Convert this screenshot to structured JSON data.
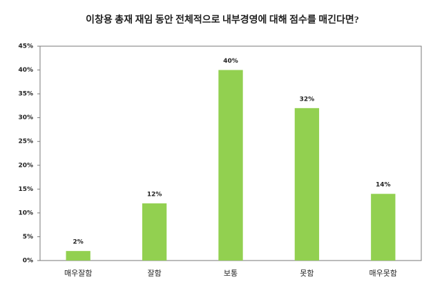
{
  "chart_data": {
    "type": "bar",
    "title": "이창용 총재 재임 동안 전체적으로 내부경영에 대해 점수를 매긴다면?",
    "categories": [
      "매우잘함",
      "잘함",
      "보통",
      "못함",
      "매우못함"
    ],
    "values": [
      2,
      12,
      40,
      32,
      14
    ],
    "value_labels": [
      "2%",
      "12%",
      "40%",
      "32%",
      "14%"
    ],
    "color": "#92d050",
    "ylim": [
      0,
      45
    ],
    "yticks": [
      {
        "value": 0,
        "label": "0%"
      },
      {
        "value": 5,
        "label": "5%"
      },
      {
        "value": 10,
        "label": "10%"
      },
      {
        "value": 15,
        "label": "15%"
      },
      {
        "value": 20,
        "label": "20%"
      },
      {
        "value": 25,
        "label": "25%"
      },
      {
        "value": 30,
        "label": "30%"
      },
      {
        "value": 35,
        "label": "35%"
      },
      {
        "value": 40,
        "label": "40%"
      },
      {
        "value": 45,
        "label": "45%"
      }
    ],
    "grid": false
  }
}
